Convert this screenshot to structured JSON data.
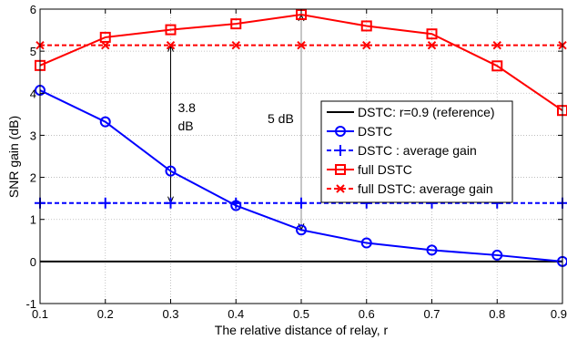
{
  "chart_data": {
    "type": "line",
    "xlabel": "The relative distance of relay, r",
    "ylabel": "SNR gain (dB)",
    "xlim": [
      0.1,
      0.9
    ],
    "ylim": [
      -1,
      6
    ],
    "x_ticks": [
      0.1,
      0.2,
      0.3,
      0.4,
      0.5,
      0.6,
      0.7,
      0.8,
      0.9
    ],
    "x_tick_labels": [
      "0.1",
      "0.2",
      "0.3",
      "0.4",
      "0.5",
      "0.6",
      "0.7",
      "0.8",
      "0.9"
    ],
    "y_ticks": [
      -1,
      0,
      1,
      2,
      3,
      4,
      5,
      6
    ],
    "y_tick_labels": [
      "-1",
      "0",
      "1",
      "2",
      "3",
      "4",
      "5",
      "6"
    ],
    "grid": true,
    "legend_position": "center-right",
    "x": [
      0.1,
      0.2,
      0.3,
      0.4,
      0.5,
      0.6,
      0.7,
      0.8,
      0.9
    ],
    "series": [
      {
        "name": "DSTC: r=0.9 (reference)",
        "color": "#000000",
        "style": "solid",
        "marker": "none",
        "values": [
          0,
          0,
          0,
          0,
          0,
          0,
          0,
          0,
          0
        ]
      },
      {
        "name": "DSTC",
        "color": "#0000ff",
        "style": "solid",
        "marker": "circle",
        "values": [
          4.07,
          3.32,
          2.15,
          1.33,
          0.75,
          0.44,
          0.27,
          0.15,
          0.0
        ]
      },
      {
        "name": "DSTC : average gain",
        "color": "#0000ff",
        "style": "dashed",
        "marker": "plus",
        "values": [
          1.39,
          1.39,
          1.39,
          1.39,
          1.39,
          1.39,
          1.39,
          1.39,
          1.39
        ]
      },
      {
        "name": "full DSTC",
        "color": "#ff0000",
        "style": "solid",
        "marker": "square",
        "values": [
          4.66,
          5.33,
          5.51,
          5.65,
          5.87,
          5.6,
          5.41,
          4.65,
          3.59
        ]
      },
      {
        "name": "full DSTC: average gain",
        "color": "#ff0000",
        "style": "dashed",
        "marker": "x",
        "values": [
          5.14,
          5.14,
          5.14,
          5.14,
          5.14,
          5.14,
          5.14,
          5.14,
          5.14
        ]
      }
    ],
    "annotations": [
      {
        "id": "ann-38",
        "lines": [
          "3.8",
          "dB"
        ],
        "x": 0.3,
        "y_from": 1.39,
        "y_to": 5.14
      },
      {
        "id": "ann-5",
        "lines": [
          "5 dB"
        ],
        "x": 0.5,
        "y_from": 0.75,
        "y_to": 5.87
      }
    ]
  }
}
